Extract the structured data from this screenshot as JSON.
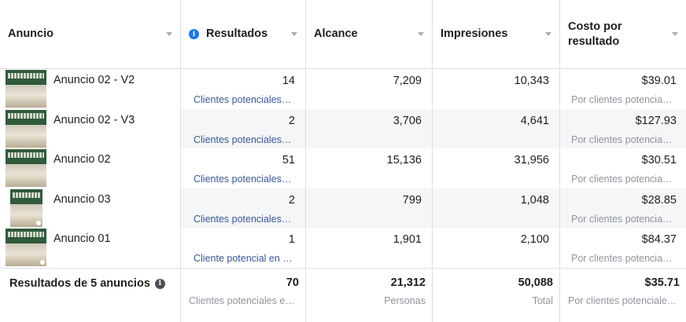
{
  "columns": [
    {
      "label": "Anuncio"
    },
    {
      "label": "Resultados",
      "has_info": true
    },
    {
      "label": "Alcance"
    },
    {
      "label": "Impresiones"
    },
    {
      "label": "Costo por resultado"
    }
  ],
  "rows": [
    {
      "name": "Anuncio 02 - V2",
      "results": "14",
      "results_type": "Clientes potenciales…",
      "reach": "7,209",
      "impressions": "10,343",
      "cost": "$39.01",
      "cost_type": "Por clientes potencia…"
    },
    {
      "name": "Anuncio 02 - V3",
      "results": "2",
      "results_type": "Clientes potenciales…",
      "reach": "3,706",
      "impressions": "4,641",
      "cost": "$127.93",
      "cost_type": "Por clientes potencia…"
    },
    {
      "name": "Anuncio 02",
      "results": "51",
      "results_type": "Clientes potenciales…",
      "reach": "15,136",
      "impressions": "31,956",
      "cost": "$30.51",
      "cost_type": "Por clientes potencia…"
    },
    {
      "name": "Anuncio 03",
      "results": "2",
      "results_type": "Clientes potenciales…",
      "reach": "799",
      "impressions": "1,048",
      "cost": "$28.85",
      "cost_type": "Por clientes potencia…"
    },
    {
      "name": "Anuncio 01",
      "results": "1",
      "results_type": "Cliente potencial en …",
      "reach": "1,901",
      "impressions": "2,100",
      "cost": "$84.37",
      "cost_type": "Por clientes potencia…"
    }
  ],
  "summary": {
    "label": "Resultados de 5 anuncios",
    "results": "70",
    "results_type": "Clientes potenciales e…",
    "reach": "21,312",
    "reach_type": "Personas",
    "impressions": "50,088",
    "impressions_type": "Total",
    "cost": "$35.71",
    "cost_type": "Por clientes potenciale…"
  },
  "icons": {
    "info": "info-icon",
    "sort": "sort-caret-icon",
    "thumbnail": "ad-thumbnail-image"
  },
  "colors": {
    "link": "#385898",
    "info_blue": "#1877f2",
    "muted": "#90949c",
    "alt_row": "#f5f6f7"
  }
}
